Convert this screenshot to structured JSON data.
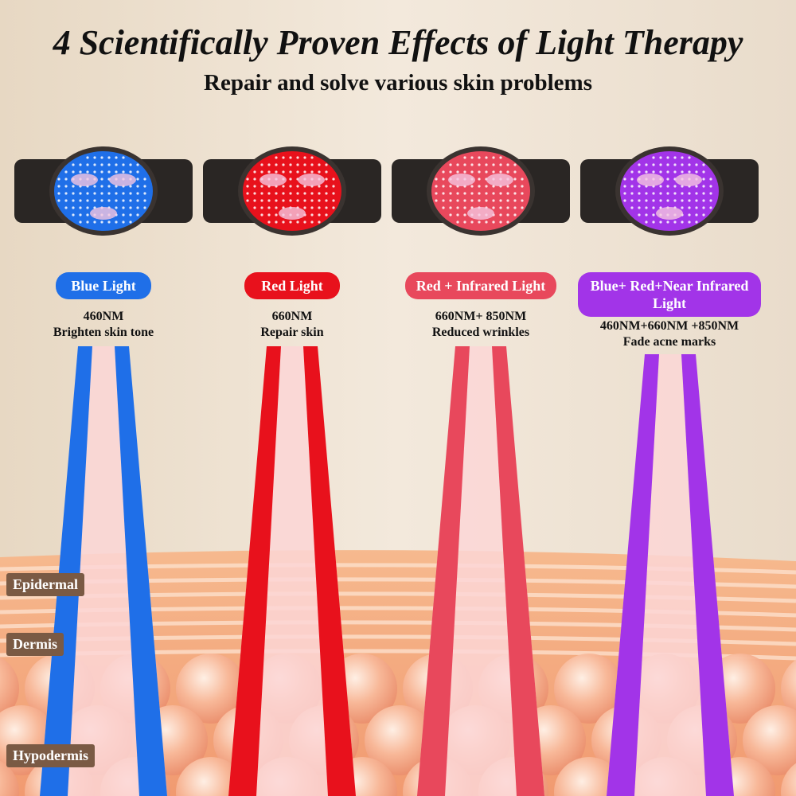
{
  "header": {
    "title": "4 Scientifically Proven Effects of Light Therapy",
    "subtitle": "Repair and solve various skin problems"
  },
  "modes": [
    {
      "label": "Blue Light",
      "wavelength": "460NM",
      "effect": "Brighten skin tone",
      "color": "#1f6fe8"
    },
    {
      "label": "Red Light",
      "wavelength": "660NM",
      "effect": "Repair skin",
      "color": "#e8111c"
    },
    {
      "label": "Red + Infrared Light",
      "wavelength": "660NM+ 850NM",
      "effect": "Reduced wrinkles",
      "color": "#e8485c"
    },
    {
      "label": "Blue+ Red+Near Infrared Light",
      "wavelength": "460NM+660NM +850NM",
      "effect": "Fade acne marks",
      "color": "#a234e8"
    }
  ],
  "layers": [
    "Epidermal",
    "Dermis",
    "Hypodermis"
  ]
}
